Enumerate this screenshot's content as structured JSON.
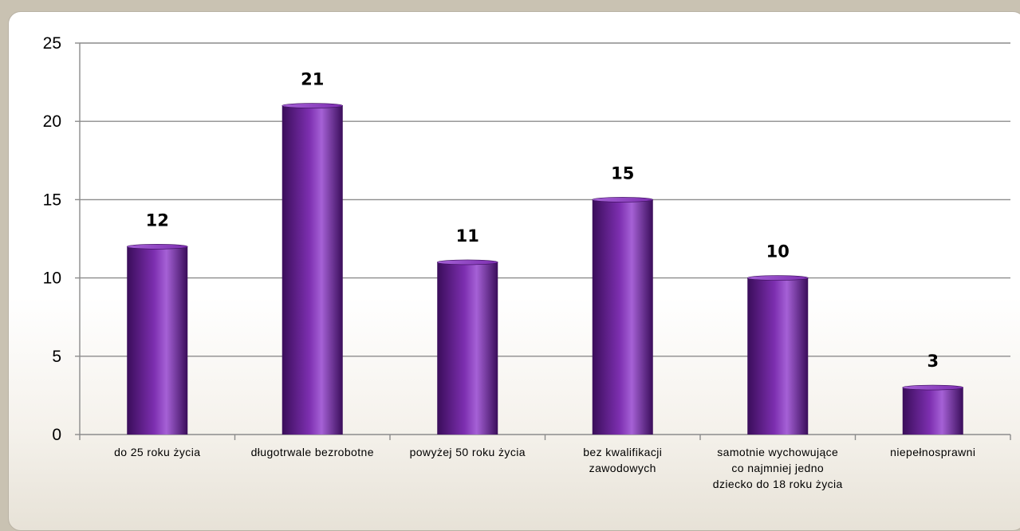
{
  "chart_data": {
    "type": "bar",
    "categories": [
      [
        "do 25 roku życia"
      ],
      [
        "długotrwale bezrobotne"
      ],
      [
        "powyżej 50 roku życia"
      ],
      [
        "bez kwalifikacji",
        "zawodowych"
      ],
      [
        "samotnie wychowujące",
        "co najmniej jedno",
        "dziecko do 18 roku życia"
      ],
      [
        "niepełnosprawni"
      ]
    ],
    "values": [
      12,
      21,
      11,
      15,
      10,
      3
    ],
    "data_labels": [
      "12",
      "21",
      "11",
      "15",
      "10",
      "3"
    ],
    "ylim": [
      0,
      25
    ],
    "yticks": [
      0,
      5,
      10,
      15,
      20,
      25
    ],
    "grid": true,
    "bar_color": "#7d2fb0",
    "bar_color_dark": "#3a0d5a",
    "bar_color_light": "#a561d6"
  }
}
